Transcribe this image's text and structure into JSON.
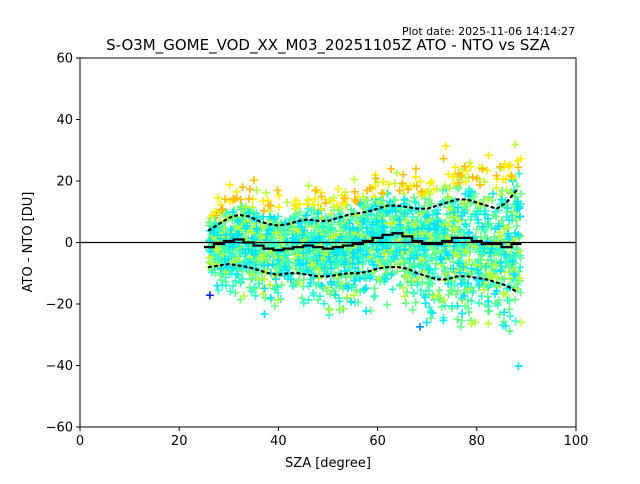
{
  "chart_data": {
    "type": "scatter",
    "plot_date": "Plot date: 2025-11-06 14:14:27",
    "title": "S-O3M_GOME_VOD_XX_M03_20251105Z ATO - NTO vs SZA",
    "xlabel": "SZA [degree]",
    "ylabel": "ATO - NTO [DU]",
    "xlim": [
      0,
      100
    ],
    "ylim": [
      -60,
      60
    ],
    "x_ticks": [
      0,
      20,
      40,
      60,
      80,
      100
    ],
    "x_tick_labels": [
      "0",
      "20",
      "40",
      "60",
      "80",
      "100"
    ],
    "y_ticks": [
      -60,
      -40,
      -20,
      0,
      20,
      40,
      60
    ],
    "y_tick_labels": [
      "−60",
      "−40",
      "−20",
      "0",
      "20",
      "40",
      "60"
    ],
    "reference_line_y": 0,
    "marker": "+",
    "color_scale": [
      "#0022ff",
      "#0088ff",
      "#00e5ff",
      "#33ffcc",
      "#66ff88",
      "#b8ff3a",
      "#ffee00",
      "#ffbb00"
    ],
    "sza_coverage": [
      26,
      89
    ],
    "mean_curve": {
      "sza": [
        26,
        28,
        30,
        32,
        34,
        36,
        38,
        40,
        42,
        44,
        46,
        48,
        50,
        52,
        54,
        56,
        58,
        60,
        62,
        64,
        66,
        68,
        70,
        72,
        74,
        76,
        78,
        80,
        82,
        84,
        86,
        88
      ],
      "value": [
        -1.5,
        -0.5,
        0.5,
        1,
        0,
        -1,
        -2,
        -2.5,
        -2,
        -1.5,
        -1,
        -1.5,
        -2,
        -1.5,
        -1,
        -0.5,
        0.5,
        1.5,
        2.5,
        3,
        2,
        0.5,
        -0.5,
        -0.5,
        0.5,
        1.5,
        1.5,
        0.5,
        -0.5,
        -0.5,
        -1.5,
        -0.5
      ]
    },
    "std_upper": {
      "sza": [
        26,
        28,
        30,
        32,
        34,
        36,
        38,
        40,
        42,
        44,
        46,
        48,
        50,
        52,
        54,
        56,
        58,
        60,
        62,
        64,
        66,
        68,
        70,
        72,
        74,
        76,
        78,
        80,
        82,
        84,
        86,
        88
      ],
      "value": [
        4,
        6,
        8,
        9,
        8.5,
        7,
        6,
        5.5,
        6,
        7,
        7.5,
        7,
        7,
        8,
        9,
        9.5,
        10,
        11,
        12,
        12,
        11.5,
        11,
        11,
        12,
        13,
        14,
        14,
        13,
        12,
        11,
        13,
        17
      ]
    },
    "std_lower": {
      "sza": [
        26,
        28,
        30,
        32,
        34,
        36,
        38,
        40,
        42,
        44,
        46,
        48,
        50,
        52,
        54,
        56,
        58,
        60,
        62,
        64,
        66,
        68,
        70,
        72,
        74,
        76,
        78,
        80,
        82,
        84,
        86,
        88
      ],
      "value": [
        -8,
        -7.5,
        -7,
        -7.5,
        -8,
        -9,
        -10,
        -10.5,
        -10,
        -10,
        -10.5,
        -11,
        -11,
        -10.5,
        -10,
        -10,
        -9.5,
        -8.5,
        -8,
        -8,
        -8.5,
        -10,
        -11,
        -12,
        -12,
        -11,
        -11,
        -11.5,
        -12,
        -13,
        -14,
        -16
      ]
    }
  }
}
